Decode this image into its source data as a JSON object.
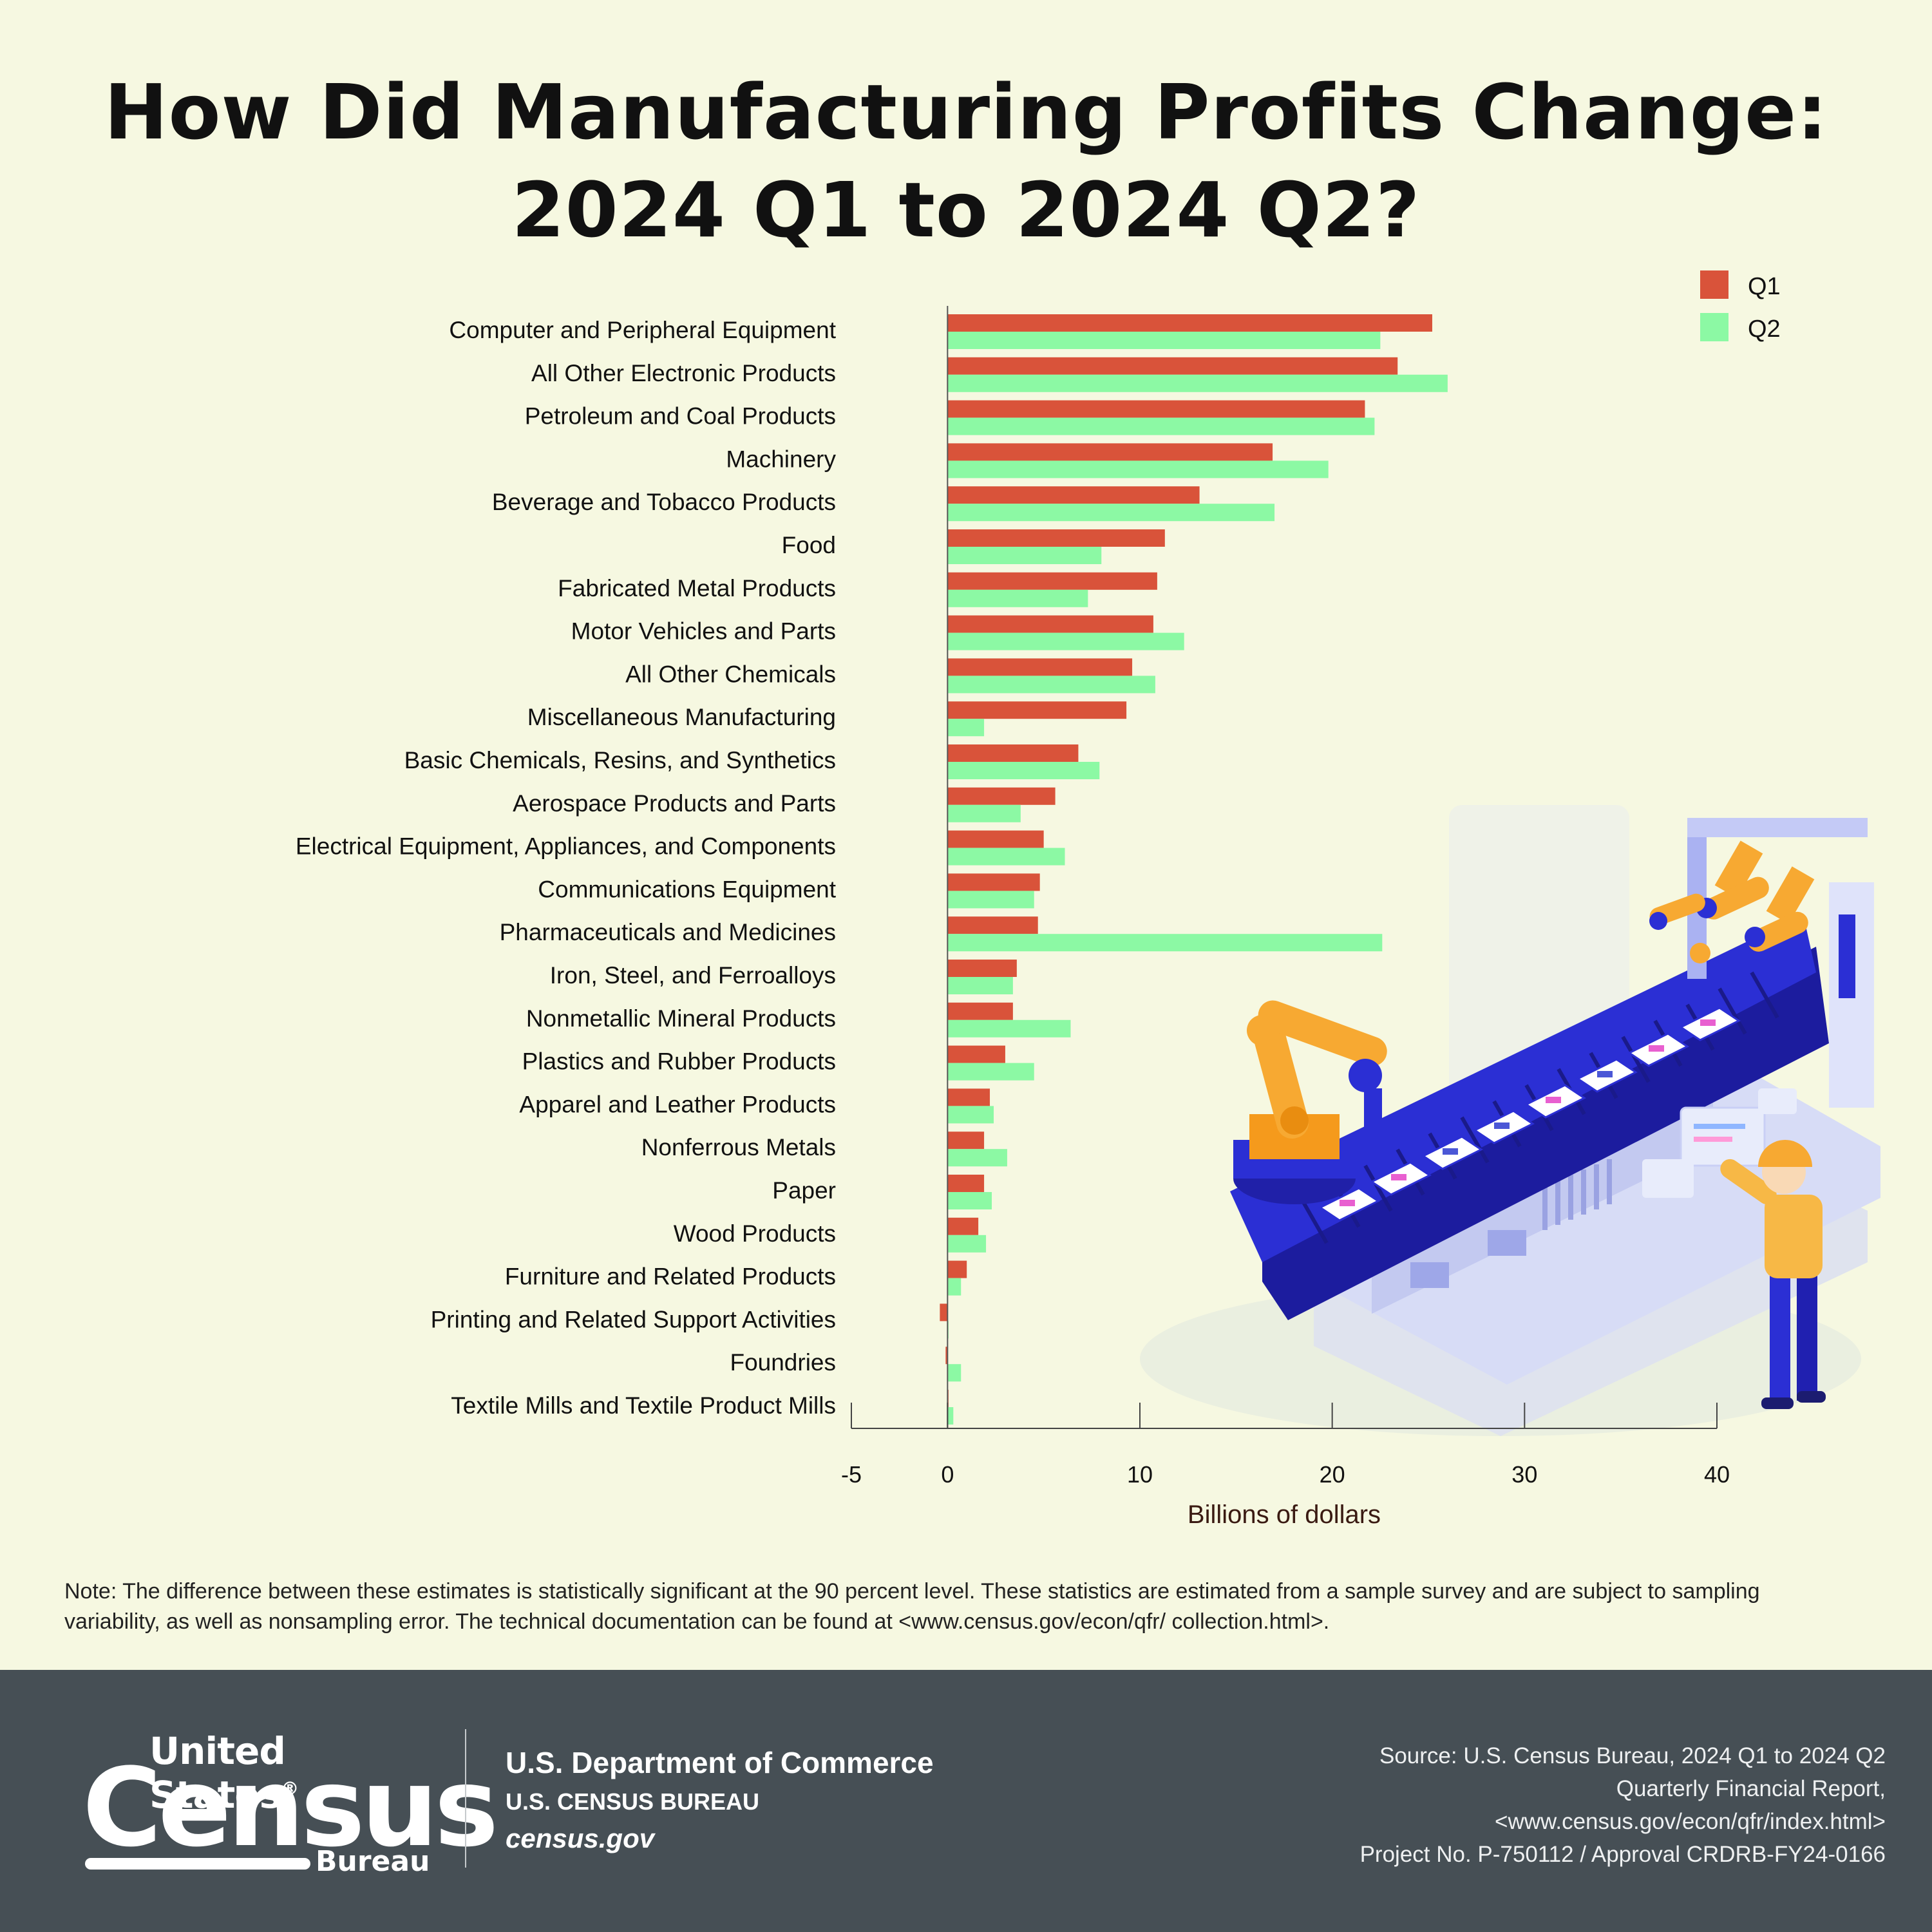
{
  "title_line1": "How Did Manufacturing Profits Change:",
  "title_line2": "2024 Q1 to 2024 Q2?",
  "chart_data": {
    "type": "bar",
    "orientation": "horizontal",
    "categories": [
      "Computer and Peripheral Equipment",
      "All Other Electronic Products",
      "Petroleum and Coal Products",
      "Machinery",
      "Beverage and Tobacco Products",
      "Food",
      "Fabricated Metal Products",
      "Motor Vehicles and Parts",
      "All Other Chemicals",
      "Miscellaneous Manufacturing",
      "Basic Chemicals, Resins, and Synthetics",
      "Aerospace Products and Parts",
      "Electrical Equipment, Appliances, and Components",
      "Communications Equipment",
      "Pharmaceuticals and Medicines",
      "Iron, Steel, and Ferroalloys",
      "Nonmetallic Mineral Products",
      "Plastics and Rubber Products",
      "Apparel and Leather Products",
      "Nonferrous Metals",
      "Paper",
      "Wood Products",
      "Furniture and Related Products",
      "Printing and Related Support Activities",
      "Foundries",
      "Textile Mills and Textile Product Mills"
    ],
    "series": [
      {
        "name": "Q1",
        "color": "#d9533a",
        "values": [
          25.2,
          23.4,
          21.7,
          16.9,
          13.1,
          11.3,
          10.9,
          10.7,
          9.6,
          9.3,
          6.8,
          5.6,
          5.0,
          4.8,
          4.7,
          3.6,
          3.4,
          3.0,
          2.2,
          1.9,
          1.9,
          1.6,
          1.0,
          -0.4,
          -0.1,
          0.0
        ]
      },
      {
        "name": "Q2",
        "color": "#8cf9a4",
        "values": [
          22.5,
          26.0,
          22.2,
          19.8,
          17.0,
          8.0,
          7.3,
          12.3,
          10.8,
          1.9,
          7.9,
          3.8,
          6.1,
          4.5,
          22.6,
          3.4,
          6.4,
          4.5,
          2.4,
          3.1,
          2.3,
          2.0,
          0.7,
          0.05,
          0.7,
          0.3
        ]
      }
    ],
    "xlabel": "Billions of dollars",
    "xlim": [
      -5,
      40
    ],
    "xticks": [
      "-5",
      "0",
      "10",
      "20",
      "30",
      "40"
    ],
    "legend": "top-right"
  },
  "note": "Note: The difference between these estimates is statistically significant at the 90 percent level. These statistics are estimated from a sample survey and are subject to sampling variability, as well as nonsampling error. The technical documentation can be found at <www.census.gov/econ/qfr/ collection.html>.",
  "footer": {
    "logo_top": "United States",
    "logo_reg": "®",
    "logo_main": "Census",
    "logo_sub": "Bureau",
    "dept": "U.S. Department of Commerce",
    "bureau": "U.S. CENSUS BUREAU",
    "site": "census.gov",
    "source_lines": [
      "Source: U.S. Census Bureau, 2024 Q1 to 2024 Q2",
      "Quarterly Financial Report,",
      "<www.census.gov/econ/qfr/index.html>",
      "Project No. P-750112 / Approval CRDRB-FY24-0166"
    ]
  },
  "colors": {
    "background": "#f6f8e1",
    "q1": "#d9533a",
    "q2": "#8cf9a4",
    "footer": "#464f55",
    "axis_label": "#3a1a12",
    "illustration_blue": "#2b2fd4",
    "illustration_orange": "#f7a932"
  }
}
